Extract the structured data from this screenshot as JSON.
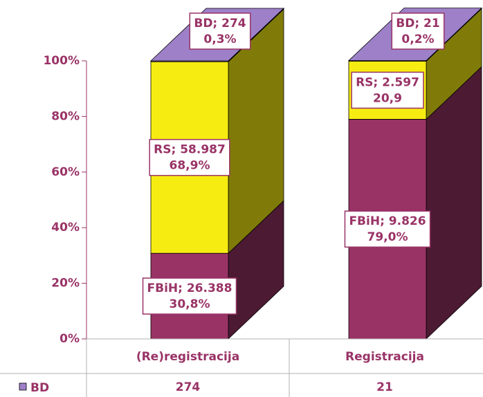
{
  "chart_data": {
    "type": "stacked-bar-3d",
    "categories": [
      "(Re)registracija",
      "Registracija"
    ],
    "ylim": [
      0,
      100
    ],
    "yticks": [
      {
        "value": 0,
        "label": "0%"
      },
      {
        "value": 20,
        "label": "20%"
      },
      {
        "value": 40,
        "label": "40%"
      },
      {
        "value": 60,
        "label": "60%"
      },
      {
        "value": 80,
        "label": "80%"
      },
      {
        "value": 100,
        "label": "100%"
      }
    ],
    "series": [
      {
        "name": "FBiH",
        "color": "#993366",
        "values": [
          30.8,
          79.0
        ],
        "value_labels": [
          [
            "FBiH; 26.388",
            "30,8%"
          ],
          [
            "FBiH; 9.826",
            "79,0%"
          ]
        ]
      },
      {
        "name": "RS",
        "color": "#f7ec12",
        "values": [
          68.9,
          20.9
        ],
        "value_labels": [
          [
            "RS; 58.987",
            "68,9%"
          ],
          [
            "RS; 2.597",
            "20,9"
          ]
        ]
      },
      {
        "name": "BD",
        "color": "#9d80c8",
        "values": [
          0.3,
          0.2
        ],
        "counts": [
          274,
          21
        ],
        "value_labels": [
          [
            "BD; 274",
            "0,3%"
          ],
          [
            "BD; 21",
            "0,2%"
          ]
        ]
      }
    ]
  }
}
